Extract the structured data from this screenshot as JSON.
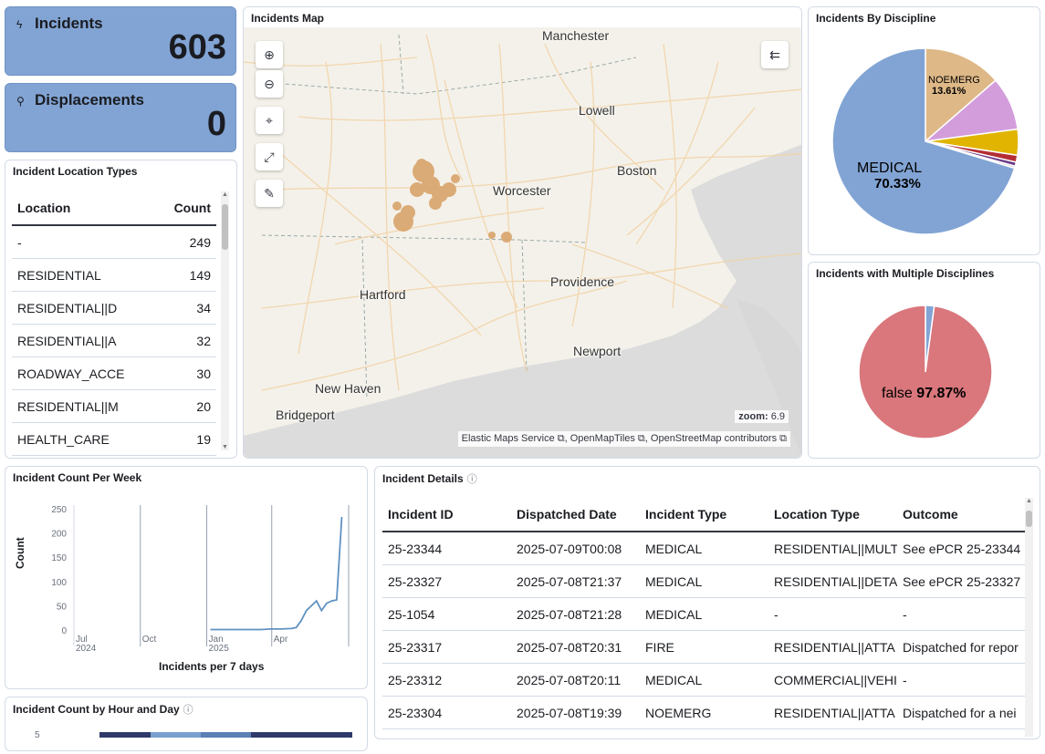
{
  "metrics": {
    "incidents": {
      "label": "Incidents",
      "value": "603",
      "icon": "bolt-icon"
    },
    "displacements": {
      "label": "Displacements",
      "value": "0",
      "icon": "map-pin-icon"
    }
  },
  "location_types": {
    "title": "Incident Location Types",
    "columns": [
      "Location",
      "Count"
    ],
    "rows": [
      [
        "-",
        "249"
      ],
      [
        "RESIDENTIAL",
        "149"
      ],
      [
        "RESIDENTIAL||D",
        "34"
      ],
      [
        "RESIDENTIAL||A",
        "32"
      ],
      [
        "ROADWAY_ACCE",
        "30"
      ],
      [
        "RESIDENTIAL||M",
        "20"
      ],
      [
        "HEALTH_CARE",
        "19"
      ]
    ]
  },
  "map": {
    "title": "Incidents Map",
    "cities": [
      "Manchester",
      "Lowell",
      "Boston",
      "Worcester",
      "Providence",
      "Hartford",
      "Newport",
      "New Haven",
      "Bridgeport"
    ],
    "zoom_label": "zoom:",
    "zoom_value": "6.9",
    "attribution": "Elastic Maps Service ⧉, OpenMapTiles ⧉, OpenStreetMap contributors ⧉",
    "marker_color": "#d9a46b"
  },
  "discipline": {
    "title": "Incidents By Discipline",
    "big_label": "MEDICAL",
    "big_pct": "70.33%",
    "noemerg_label": "NOEMERG",
    "noemerg_pct": "13.61%"
  },
  "multi": {
    "title": "Incidents with Multiple Disciplines",
    "label": "false",
    "pct": "97.87%"
  },
  "weekly": {
    "title": "Incident Count Per Week",
    "xlabel": "Incidents per 7 days",
    "ylabel": "Count",
    "xticks": [
      {
        "m": "Jul",
        "y": "2024"
      },
      {
        "m": "Oct",
        "y": ""
      },
      {
        "m": "Jan",
        "y": "2025"
      },
      {
        "m": "Apr",
        "y": ""
      }
    ],
    "yticks": [
      "250",
      "200",
      "150",
      "100",
      "50",
      "0"
    ]
  },
  "hourday": {
    "title": "Incident Count by Hour and Day",
    "ytick": "5"
  },
  "details": {
    "title": "Incident Details",
    "columns": [
      "Incident ID",
      "Dispatched Date",
      "Incident Type",
      "Location Type",
      "Outcome"
    ],
    "rows": [
      [
        "25-23344",
        "2025-07-09T00:08",
        "MEDICAL",
        "RESIDENTIAL||MULT",
        "See ePCR 25-23344"
      ],
      [
        "25-23327",
        "2025-07-08T21:37",
        "MEDICAL",
        "RESIDENTIAL||DETA",
        "See ePCR 25-23327"
      ],
      [
        "25-1054",
        "2025-07-08T21:28",
        "MEDICAL",
        "-",
        "-"
      ],
      [
        "25-23317",
        "2025-07-08T20:31",
        "FIRE",
        "RESIDENTIAL||ATTA",
        "Dispatched for repor"
      ],
      [
        "25-23312",
        "2025-07-08T20:11",
        "MEDICAL",
        "COMMERCIAL||VEHI",
        "-"
      ],
      [
        "25-23304",
        "2025-07-08T19:39",
        "NOEMERG",
        "RESIDENTIAL||ATTA",
        "Dispatched for a nei"
      ]
    ]
  },
  "chart_data": [
    {
      "type": "pie",
      "title": "Incidents By Discipline",
      "slices": [
        {
          "label": "MEDICAL",
          "value": 70.33,
          "color": "#82a4d4"
        },
        {
          "label": "NOEMERG",
          "value": 13.61,
          "color": "#deb887"
        },
        {
          "label": "",
          "value": 9.3,
          "color": "#d39ddb"
        },
        {
          "label": "",
          "value": 4.5,
          "color": "#e0b400"
        },
        {
          "label": "",
          "value": 1.2,
          "color": "#b32e34"
        },
        {
          "label": "",
          "value": 0.7,
          "color": "#6c3b8a"
        },
        {
          "label": "",
          "value": 0.36,
          "color": "#c9c9c9"
        }
      ]
    },
    {
      "type": "pie",
      "title": "Incidents with Multiple Disciplines",
      "slices": [
        {
          "label": "false",
          "value": 97.87,
          "color": "#d9777c"
        },
        {
          "label": "",
          "value": 2.13,
          "color": "#82a4d4"
        }
      ]
    },
    {
      "type": "line",
      "title": "Incident Count Per Week",
      "xlabel": "Incidents per 7 days",
      "ylabel": "Count",
      "ylim": [
        0,
        250
      ],
      "x": [
        "2025-01-06",
        "2025-01-20",
        "2025-02-03",
        "2025-02-17",
        "2025-03-03",
        "2025-03-17",
        "2025-03-31",
        "2025-04-14",
        "2025-04-28",
        "2025-05-05",
        "2025-05-12",
        "2025-05-19",
        "2025-05-26",
        "2025-06-02",
        "2025-06-09",
        "2025-06-16",
        "2025-06-23",
        "2025-06-30",
        "2025-07-07"
      ],
      "values": [
        1,
        1,
        1,
        1,
        1,
        1,
        2,
        2,
        3,
        5,
        20,
        40,
        50,
        60,
        40,
        55,
        60,
        62,
        233
      ],
      "color": "#6092c0"
    }
  ]
}
